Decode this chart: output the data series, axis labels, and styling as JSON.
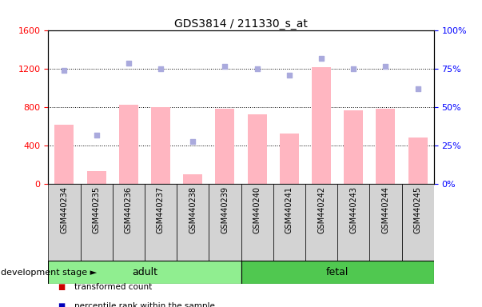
{
  "title": "GDS3814 / 211330_s_at",
  "samples": [
    "GSM440234",
    "GSM440235",
    "GSM440236",
    "GSM440237",
    "GSM440238",
    "GSM440239",
    "GSM440240",
    "GSM440241",
    "GSM440242",
    "GSM440243",
    "GSM440244",
    "GSM440245"
  ],
  "bar_values": [
    620,
    140,
    830,
    800,
    100,
    790,
    730,
    530,
    1220,
    770,
    790,
    490
  ],
  "rank_values": [
    74,
    32,
    79,
    75,
    28,
    77,
    75,
    71,
    82,
    75,
    77,
    62
  ],
  "groups": [
    {
      "label": "adult",
      "start": 0,
      "end": 6,
      "color": "#90EE90"
    },
    {
      "label": "fetal",
      "start": 6,
      "end": 12,
      "color": "#50C850"
    }
  ],
  "ylim_left": [
    0,
    1600
  ],
  "ylim_right": [
    0,
    100
  ],
  "yticks_left": [
    0,
    400,
    800,
    1200,
    1600
  ],
  "yticks_right": [
    0,
    25,
    50,
    75,
    100
  ],
  "bar_color": "#FFB6C1",
  "rank_color": "#AAAADD",
  "legend_color_bar": "#CC0000",
  "legend_color_rank": "#0000BB",
  "legend_color_absent_bar": "#FFB6C1",
  "legend_color_absent_rank": "#AAAADD",
  "group_label": "development stage",
  "col_bg": "#D3D3D3"
}
